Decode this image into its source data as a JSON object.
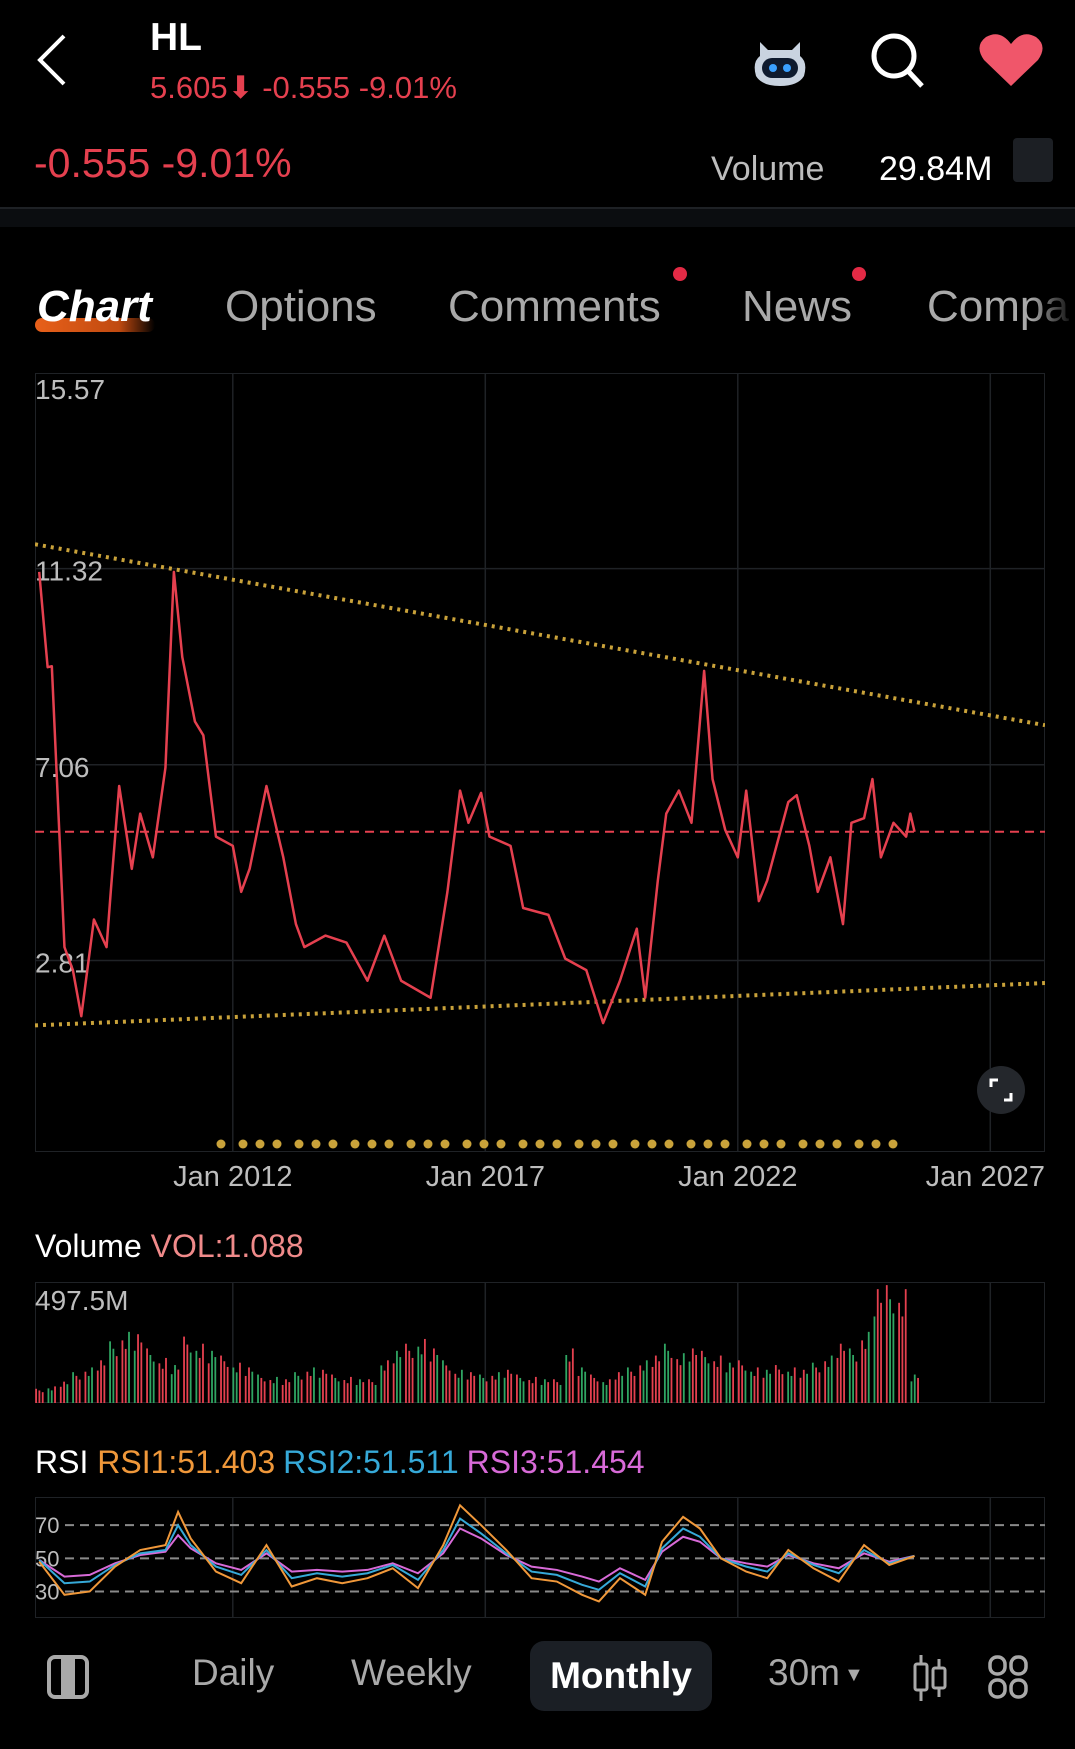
{
  "header": {
    "ticker": "HL",
    "price": "5.605",
    "change": "-0.555",
    "change_pct": "-9.01%",
    "icons": [
      "back-chevron-icon",
      "robot-assistant-icon",
      "search-icon",
      "heart-icon"
    ]
  },
  "summary": {
    "change": "-0.555",
    "change_pct": "-9.01%",
    "volume_label": "Volume",
    "volume_value": "29.84M"
  },
  "tabs": [
    {
      "label": "Chart",
      "active": true
    },
    {
      "label": "Options"
    },
    {
      "label": "Comments",
      "badge": true
    },
    {
      "label": "News",
      "badge": true
    },
    {
      "label": "Compa"
    }
  ],
  "colors": {
    "down": "#e5404f",
    "up": "#2fa562",
    "accent": "#e8601a",
    "trendline": "#c9a23a",
    "rsi1": "#f0983a",
    "rsi2": "#36a9d8",
    "rsi3": "#d86ad8"
  },
  "chart_data": [
    {
      "type": "line",
      "y_ticks": [
        "15.57",
        "11.32",
        "7.06",
        "2.81"
      ],
      "x_ticks": [
        "Jan 2012",
        "Jan 2017",
        "Jan 2022",
        "Jan 2027"
      ],
      "ylim": [
        -1.35,
        15.57
      ],
      "xlim": [
        "2008-02",
        "2028-02"
      ],
      "current_price_line": 5.605,
      "series": [
        {
          "points": [
            [
              "2008-03",
              11.25
            ],
            [
              "2008-05",
              9.18
            ],
            [
              "2008-06",
              9.2
            ],
            [
              "2008-09",
              3.1
            ],
            [
              "2008-11",
              2.6
            ],
            [
              "2009-01",
              1.6
            ],
            [
              "2009-04",
              3.7
            ],
            [
              "2009-07",
              3.1
            ],
            [
              "2009-08",
              4.3
            ],
            [
              "2009-10",
              6.6
            ],
            [
              "2010-01",
              4.8
            ],
            [
              "2010-03",
              6.0
            ],
            [
              "2010-06",
              5.05
            ],
            [
              "2010-09",
              7.0
            ],
            [
              "2010-11",
              11.25
            ],
            [
              "2011-01",
              9.4
            ],
            [
              "2011-04",
              8.0
            ],
            [
              "2011-06",
              7.7
            ],
            [
              "2011-09",
              5.5
            ],
            [
              "2012-01",
              5.3
            ],
            [
              "2012-03",
              4.3
            ],
            [
              "2012-05",
              4.8
            ],
            [
              "2012-09",
              6.6
            ],
            [
              "2013-01",
              5.05
            ],
            [
              "2013-04",
              3.6
            ],
            [
              "2013-06",
              3.1
            ],
            [
              "2013-11",
              3.35
            ],
            [
              "2014-04",
              3.2
            ],
            [
              "2014-09",
              2.37
            ],
            [
              "2015-01",
              3.35
            ],
            [
              "2015-05",
              2.37
            ],
            [
              "2015-12",
              2.0
            ],
            [
              "2016-04",
              4.3
            ],
            [
              "2016-07",
              6.5
            ],
            [
              "2016-09",
              5.8
            ],
            [
              "2016-12",
              6.45
            ],
            [
              "2017-02",
              5.5
            ],
            [
              "2017-07",
              5.3
            ],
            [
              "2017-10",
              3.95
            ],
            [
              "2018-04",
              3.8
            ],
            [
              "2018-08",
              2.85
            ],
            [
              "2019-01",
              2.6
            ],
            [
              "2019-05",
              1.45
            ],
            [
              "2019-09",
              2.37
            ],
            [
              "2020-01",
              3.5
            ],
            [
              "2020-03",
              2.0
            ],
            [
              "2020-06",
              4.55
            ],
            [
              "2020-08",
              6.0
            ],
            [
              "2020-11",
              6.5
            ],
            [
              "2021-02",
              5.8
            ],
            [
              "2021-05",
              9.1
            ],
            [
              "2021-07",
              6.75
            ],
            [
              "2021-10",
              5.65
            ],
            [
              "2022-01",
              5.05
            ],
            [
              "2022-03",
              6.5
            ],
            [
              "2022-06",
              4.1
            ],
            [
              "2022-08",
              4.55
            ],
            [
              "2023-01",
              6.25
            ],
            [
              "2023-03",
              6.4
            ],
            [
              "2023-06",
              5.3
            ],
            [
              "2023-08",
              4.3
            ],
            [
              "2023-11",
              5.05
            ],
            [
              "2024-02",
              3.6
            ],
            [
              "2024-04",
              5.8
            ],
            [
              "2024-07",
              5.9
            ],
            [
              "2024-09",
              6.75
            ],
            [
              "2024-11",
              5.05
            ],
            [
              "2025-02",
              5.8
            ],
            [
              "2025-05",
              5.5
            ],
            [
              "2025-06",
              6.0
            ],
            [
              "2025-07",
              5.605
            ]
          ]
        }
      ],
      "trendlines": [
        {
          "from": [
            "2008-02",
            11.85
          ],
          "to": [
            "2028-02",
            7.92
          ]
        },
        {
          "from": [
            "2008-02",
            1.4
          ],
          "to": [
            "2028-02",
            2.32
          ]
        }
      ]
    },
    {
      "type": "bar",
      "title": "Volume",
      "indicator": "VOL:1.088",
      "y_max_label": "497.5M",
      "ylim": [
        0,
        497.5
      ],
      "values": [
        60,
        70,
        90,
        130,
        150,
        180,
        260,
        300,
        290,
        230,
        190,
        160,
        280,
        250,
        220,
        200,
        170,
        150,
        120,
        110,
        100,
        130,
        150,
        140,
        120,
        110,
        100,
        100,
        180,
        220,
        250,
        270,
        230,
        180,
        140,
        130,
        120,
        130,
        140,
        120,
        110,
        100,
        100,
        230,
        150,
        120,
        100,
        130,
        150,
        180,
        200,
        250,
        210,
        230,
        220,
        200,
        170,
        180,
        150,
        140,
        160,
        150,
        140,
        170,
        200,
        250,
        230,
        300,
        480,
        497,
        480,
        120
      ]
    },
    {
      "type": "line",
      "title": "RSI",
      "ylim": [
        14,
        87
      ],
      "reference_lines": [
        70,
        50,
        30
      ],
      "x": [
        "2008-03",
        "2008-09",
        "2009-03",
        "2009-09",
        "2010-03",
        "2010-09",
        "2010-12",
        "2011-03",
        "2011-09",
        "2012-03",
        "2012-09",
        "2013-03",
        "2013-09",
        "2014-03",
        "2014-09",
        "2015-03",
        "2015-09",
        "2016-03",
        "2016-07",
        "2016-12",
        "2017-06",
        "2017-12",
        "2018-06",
        "2018-12",
        "2019-04",
        "2019-09",
        "2020-03",
        "2020-07",
        "2020-12",
        "2021-04",
        "2021-09",
        "2022-03",
        "2022-08",
        "2023-01",
        "2023-07",
        "2024-01",
        "2024-07",
        "2025-01",
        "2025-07"
      ],
      "series": [
        {
          "name": "RSI1:51.403",
          "values": [
            48,
            28,
            30,
            45,
            55,
            58,
            78,
            62,
            42,
            35,
            58,
            33,
            38,
            35,
            38,
            44,
            32,
            58,
            82,
            70,
            55,
            38,
            36,
            28,
            24,
            38,
            28,
            60,
            75,
            68,
            50,
            42,
            38,
            55,
            44,
            36,
            58,
            46,
            51.4
          ]
        },
        {
          "name": "RSI2:51.511",
          "values": [
            49,
            35,
            36,
            46,
            53,
            55,
            70,
            58,
            45,
            40,
            55,
            38,
            41,
            39,
            41,
            46,
            37,
            55,
            74,
            65,
            53,
            42,
            40,
            34,
            31,
            41,
            33,
            56,
            68,
            63,
            50,
            45,
            42,
            53,
            46,
            41,
            55,
            47,
            51.5
          ]
        },
        {
          "name": "RSI3:51.454",
          "values": [
            49,
            39,
            40,
            47,
            52,
            54,
            64,
            56,
            47,
            43,
            53,
            42,
            43,
            42,
            43,
            47,
            41,
            53,
            68,
            62,
            52,
            45,
            43,
            39,
            36,
            44,
            37,
            54,
            63,
            60,
            50,
            47,
            45,
            52,
            47,
            44,
            53,
            48,
            51.5
          ]
        }
      ]
    }
  ],
  "bottom_bar": {
    "periods": [
      "Daily",
      "Weekly",
      "Monthly"
    ],
    "active": "Monthly",
    "interval": "30m",
    "icons": [
      "sidebar-toggle-icon",
      "candlestick-icon",
      "grid-layout-icon"
    ]
  }
}
